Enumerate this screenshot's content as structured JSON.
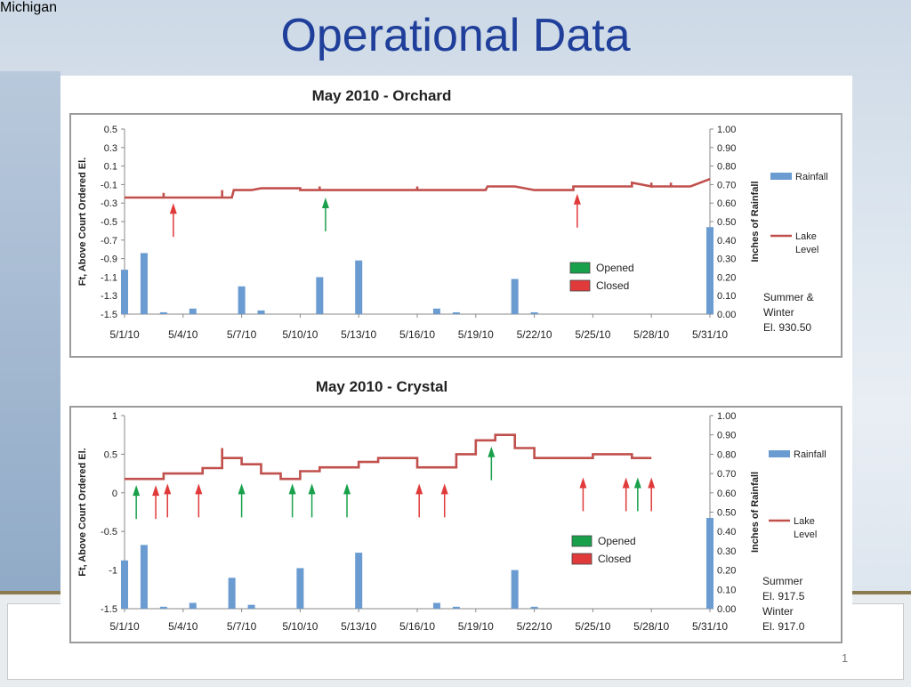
{
  "slide_title": "Operational Data",
  "page_number": "1",
  "footer_logo_text": "Michigan",
  "chart_data": [
    {
      "type": "bar+line",
      "title": "May 2010 - Orchard",
      "ylabel": "Ft, Above Court Ordered El.",
      "y2label": "Inches of Rainfall",
      "ylim": [
        -1.5,
        0.5
      ],
      "y2lim": [
        0,
        1.0
      ],
      "y_ticks": [
        "0.5",
        "0.3",
        "0.1",
        "-0.1",
        "-0.3",
        "-0.5",
        "-0.7",
        "-0.9",
        "-1.1",
        "-1.3",
        "-1.5"
      ],
      "y2_ticks": [
        "1.00",
        "0.90",
        "0.80",
        "0.70",
        "0.60",
        "0.50",
        "0.40",
        "0.30",
        "0.20",
        "0.10",
        "0.00"
      ],
      "x_ticks": [
        "5/1/10",
        "5/4/10",
        "5/7/10",
        "5/10/10",
        "5/13/10",
        "5/16/10",
        "5/19/10",
        "5/22/10",
        "5/25/10",
        "5/28/10",
        "5/31/10"
      ],
      "x_tick_days": [
        1,
        4,
        7,
        10,
        13,
        16,
        19,
        22,
        25,
        28,
        31
      ],
      "rainfall": {
        "name": "Rainfall",
        "color": "#6a9bd1",
        "points": [
          [
            1,
            0.24
          ],
          [
            2,
            0.33
          ],
          [
            3,
            0.01
          ],
          [
            4.5,
            0.03
          ],
          [
            7,
            0.15
          ],
          [
            8,
            0.02
          ],
          [
            11,
            0.2
          ],
          [
            13,
            0.29
          ],
          [
            17,
            0.03
          ],
          [
            18,
            0.01
          ],
          [
            21,
            0.19
          ],
          [
            22,
            0.01
          ],
          [
            31,
            0.47
          ]
        ]
      },
      "lake_level": {
        "name": "Lake Level",
        "color": "#c1504d",
        "points": [
          [
            1,
            -0.24
          ],
          [
            2.5,
            -0.24
          ],
          [
            3,
            -0.24
          ],
          [
            3,
            -0.19
          ],
          [
            3,
            -0.24
          ],
          [
            6,
            -0.24
          ],
          [
            6,
            -0.16
          ],
          [
            6,
            -0.24
          ],
          [
            6.5,
            -0.24
          ],
          [
            6.6,
            -0.16
          ],
          [
            7.5,
            -0.16
          ],
          [
            8,
            -0.14
          ],
          [
            10,
            -0.14
          ],
          [
            10,
            -0.16
          ],
          [
            11,
            -0.16
          ],
          [
            11,
            -0.12
          ],
          [
            11,
            -0.16
          ],
          [
            16,
            -0.16
          ],
          [
            16,
            -0.12
          ],
          [
            16,
            -0.16
          ],
          [
            19.5,
            -0.16
          ],
          [
            19.6,
            -0.12
          ],
          [
            21,
            -0.12
          ],
          [
            22,
            -0.16
          ],
          [
            24,
            -0.16
          ],
          [
            24,
            -0.12
          ],
          [
            27,
            -0.12
          ],
          [
            27,
            -0.08
          ],
          [
            27.5,
            -0.1
          ],
          [
            28,
            -0.12
          ],
          [
            28,
            -0.08
          ],
          [
            28,
            -0.12
          ],
          [
            29,
            -0.12
          ],
          [
            29,
            -0.08
          ],
          [
            29,
            -0.12
          ],
          [
            30,
            -0.12
          ],
          [
            31,
            -0.04
          ]
        ]
      },
      "opened_markers": [
        [
          11.3,
          -0.24
        ]
      ],
      "closed_markers": [
        [
          3.5,
          -0.3
        ],
        [
          24.2,
          -0.2
        ]
      ],
      "legend": [
        "Rainfall",
        "Lake Level"
      ],
      "key_labels": [
        "Opened",
        "Closed"
      ],
      "note_lines": [
        "Summer &",
        "Winter",
        "El. 930.50"
      ]
    },
    {
      "type": "bar+line",
      "title": "May 2010 - Crystal",
      "ylabel": "Ft, Above Court Ordered El.",
      "y2label": "Inches of Rainfall",
      "ylim": [
        -1.5,
        1.0
      ],
      "y2lim": [
        0,
        1.0
      ],
      "y_ticks": [
        "1",
        "0.5",
        "0",
        "-0.5",
        "-1",
        "-1.5"
      ],
      "y2_ticks": [
        "1.00",
        "0.90",
        "0.80",
        "0.70",
        "0.60",
        "0.50",
        "0.40",
        "0.30",
        "0.20",
        "0.10",
        "0.00"
      ],
      "x_ticks": [
        "5/1/10",
        "5/4/10",
        "5/7/10",
        "5/10/10",
        "5/13/10",
        "5/16/10",
        "5/19/10",
        "5/22/10",
        "5/25/10",
        "5/28/10",
        "5/31/10"
      ],
      "x_tick_days": [
        1,
        4,
        7,
        10,
        13,
        16,
        19,
        22,
        25,
        28,
        31
      ],
      "rainfall": {
        "name": "Rainfall",
        "color": "#6a9bd1",
        "points": [
          [
            1,
            0.25
          ],
          [
            2,
            0.33
          ],
          [
            3,
            0.01
          ],
          [
            4.5,
            0.03
          ],
          [
            6.5,
            0.16
          ],
          [
            7.5,
            0.02
          ],
          [
            10,
            0.21
          ],
          [
            13,
            0.29
          ],
          [
            17,
            0.03
          ],
          [
            18,
            0.01
          ],
          [
            21,
            0.2
          ],
          [
            22,
            0.01
          ],
          [
            31,
            0.47
          ]
        ]
      },
      "lake_level": {
        "name": "Lake Level",
        "color": "#c1504d",
        "points": [
          [
            1,
            0.18
          ],
          [
            3,
            0.18
          ],
          [
            3,
            0.25
          ],
          [
            5,
            0.25
          ],
          [
            5,
            0.32
          ],
          [
            6,
            0.32
          ],
          [
            6,
            0.58
          ],
          [
            6,
            0.45
          ],
          [
            7,
            0.45
          ],
          [
            7,
            0.37
          ],
          [
            8,
            0.37
          ],
          [
            8,
            0.25
          ],
          [
            9,
            0.25
          ],
          [
            9,
            0.18
          ],
          [
            10,
            0.18
          ],
          [
            10,
            0.28
          ],
          [
            11,
            0.28
          ],
          [
            11,
            0.33
          ],
          [
            13,
            0.33
          ],
          [
            13,
            0.4
          ],
          [
            14,
            0.4
          ],
          [
            14,
            0.45
          ],
          [
            16,
            0.45
          ],
          [
            16,
            0.33
          ],
          [
            18,
            0.33
          ],
          [
            18,
            0.5
          ],
          [
            19,
            0.5
          ],
          [
            19,
            0.68
          ],
          [
            20,
            0.68
          ],
          [
            20,
            0.75
          ],
          [
            21,
            0.75
          ],
          [
            21,
            0.58
          ],
          [
            22,
            0.58
          ],
          [
            22,
            0.45
          ],
          [
            25,
            0.45
          ],
          [
            25,
            0.5
          ],
          [
            27,
            0.5
          ],
          [
            27,
            0.45
          ],
          [
            28,
            0.45
          ]
        ]
      },
      "opened_markers": [
        [
          1.6,
          0.1
        ],
        [
          7,
          0.12
        ],
        [
          9.6,
          0.12
        ],
        [
          10.6,
          0.12
        ],
        [
          12.4,
          0.12
        ],
        [
          19.8,
          0.6
        ],
        [
          27.3,
          0.2
        ]
      ],
      "closed_markers": [
        [
          2.6,
          0.1
        ],
        [
          3.2,
          0.12
        ],
        [
          4.8,
          0.12
        ],
        [
          16.1,
          0.12
        ],
        [
          17.4,
          0.12
        ],
        [
          24.5,
          0.2
        ],
        [
          26.7,
          0.2
        ],
        [
          28,
          0.2
        ]
      ],
      "legend": [
        "Rainfall",
        "Lake Level"
      ],
      "key_labels": [
        "Opened",
        "Closed"
      ],
      "note_lines": [
        "Summer",
        "El. 917.5",
        "Winter",
        "El. 917.0"
      ]
    }
  ]
}
